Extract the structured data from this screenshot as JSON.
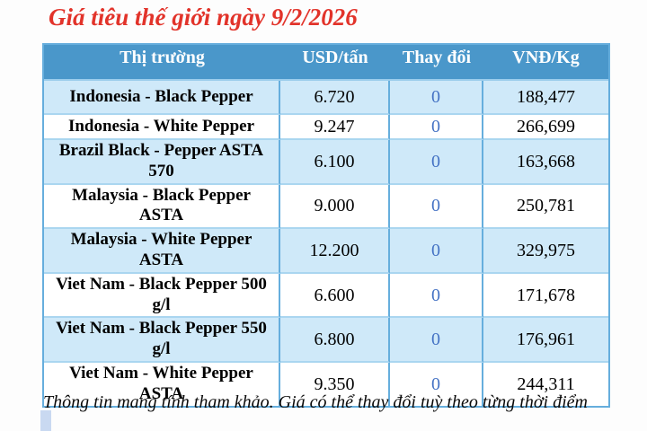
{
  "page": {
    "title": "Giá tiêu thế giới ngày 9/2/2026",
    "footnote": "Thông tin mang tính tham khảo. Giá có thể thay đổi tuỳ theo từng thời điểm"
  },
  "table": {
    "headers": [
      "Thị trường",
      "USD/tấn",
      "Thay đổi",
      "VNĐ/Kg"
    ],
    "rows": [
      {
        "market": "Indonesia - Black Pepper",
        "usd": "6.720",
        "change": "0",
        "vnd": "188,477"
      },
      {
        "market": "Indonesia - White Pepper",
        "usd": "9.247",
        "change": "0",
        "vnd": "266,699"
      },
      {
        "market": "Brazil Black - Pepper ASTA 570",
        "usd": "6.100",
        "change": "0",
        "vnd": "163,668"
      },
      {
        "market": "Malaysia - Black Pepper ASTA",
        "usd": "9.000",
        "change": "0",
        "vnd": "250,781"
      },
      {
        "market": "Malaysia - White Pepper ASTA",
        "usd": "12.200",
        "change": "0",
        "vnd": "329,975"
      },
      {
        "market": "Viet Nam - Black Pepper 500 g/l",
        "usd": "6.600",
        "change": "0",
        "vnd": "171,678"
      },
      {
        "market": "Viet Nam - Black Pepper 550 g/l",
        "usd": "6.800",
        "change": "0",
        "vnd": "176,961"
      },
      {
        "market": "Viet Nam - White Pepper ASTA",
        "usd": "9.350",
        "change": "0",
        "vnd": "244,311"
      }
    ]
  },
  "colors": {
    "title_red": "#e2332a",
    "header_bg": "#4a97ca",
    "header_text": "#ffffff",
    "row_alt_bg": "#cfe9f9",
    "row_bg": "#ffffff",
    "grid_vertical": "#66aedd",
    "grid_horizontal": "#aad6f0",
    "change_blue": "#4472c4",
    "accent_bar": "#c9d9f1"
  }
}
